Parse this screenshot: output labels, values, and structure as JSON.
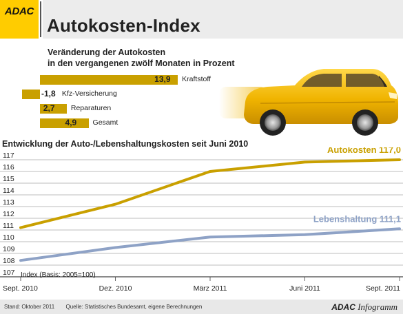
{
  "header": {
    "logo": "ADAC",
    "title": "Autokosten-Index"
  },
  "bars": {
    "title_line1": "Veränderung der Autokosten",
    "title_line2": "in den vergangenen zwölf Monaten in Prozent",
    "items": [
      {
        "value": 13.9,
        "value_label": "13,9",
        "label": "Kraftstoff"
      },
      {
        "value": -1.8,
        "value_label": "-1,8",
        "label": "Kfz-Versicherung"
      },
      {
        "value": 2.7,
        "value_label": "2,7",
        "label": "Reparaturen"
      },
      {
        "value": 4.9,
        "value_label": "4,9",
        "label": "Gesamt"
      }
    ]
  },
  "colors": {
    "gold": "#c9a000",
    "blue": "#8ea2c6",
    "logo_yellow": "#ffcc00",
    "grid": "#bdbdbd"
  },
  "chart_data": {
    "type": "line",
    "title": "Entwicklung der Auto-/Lebenshaltungskosten seit Juni 2010",
    "ylabel": "Index (Basis: 2005=100)",
    "ylim": [
      107,
      117
    ],
    "yticks": [
      "107",
      "108",
      "109",
      "110",
      "111",
      "112",
      "113",
      "114",
      "115",
      "116",
      "117"
    ],
    "x": [
      "Sept. 2010",
      "Dez. 2010",
      "März 2011",
      "Juni 2011",
      "Sept. 2011"
    ],
    "grid": true,
    "series": [
      {
        "name": "Autokosten",
        "end_label": "117,0",
        "color": "#c9a000",
        "values": [
          111.2,
          113.2,
          116.0,
          116.8,
          117.0
        ]
      },
      {
        "name": "Lebenshaltung",
        "end_label": "111,1",
        "color": "#8ea2c6",
        "values": [
          108.4,
          109.5,
          110.4,
          110.6,
          111.1
        ]
      }
    ]
  },
  "footer": {
    "stand": "Stand: Oktober 2011",
    "source": "Quelle: Statistisches Bundesamt, eigene Berechnungen",
    "brand_bold": "ADAC",
    "brand_italic": "Infogramm"
  }
}
